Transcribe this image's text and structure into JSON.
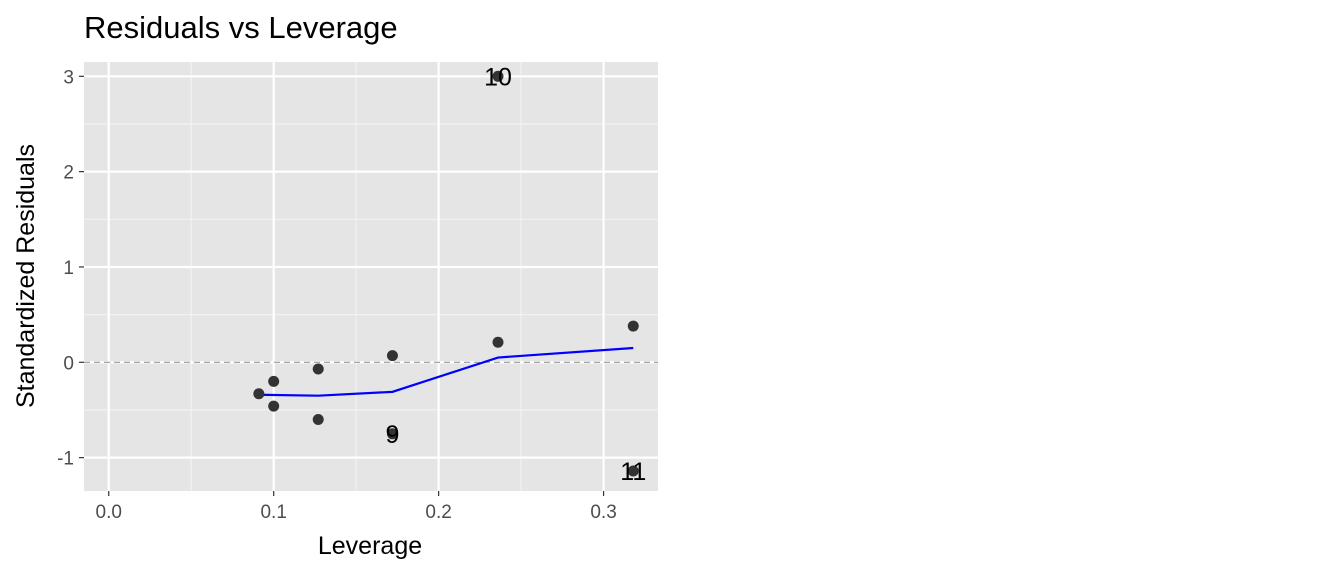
{
  "chart_data": {
    "type": "scatter",
    "title": "Residuals vs Leverage",
    "xlabel": "Leverage",
    "ylabel": "Standardized Residuals",
    "xlim": [
      -0.015,
      0.333
    ],
    "ylim": [
      -1.35,
      3.15
    ],
    "x_ticks": [
      0.0,
      0.1,
      0.2,
      0.3
    ],
    "x_tick_labels": [
      "0.0",
      "0.1",
      "0.2",
      "0.3"
    ],
    "y_ticks": [
      -1,
      0,
      1,
      2,
      3
    ],
    "y_tick_labels": [
      "-1",
      "0",
      "1",
      "2",
      "3"
    ],
    "grid": true,
    "reference_line": {
      "y": 0,
      "style": "dashed",
      "color": "#999999"
    },
    "point_color": "#333333",
    "smooth_color": "#0000ff",
    "points": [
      {
        "x": 0.091,
        "y": -0.33,
        "label": ""
      },
      {
        "x": 0.1,
        "y": -0.2,
        "label": ""
      },
      {
        "x": 0.1,
        "y": -0.46,
        "label": ""
      },
      {
        "x": 0.127,
        "y": -0.07,
        "label": ""
      },
      {
        "x": 0.127,
        "y": -0.6,
        "label": ""
      },
      {
        "x": 0.172,
        "y": 0.07,
        "label": ""
      },
      {
        "x": 0.172,
        "y": -0.75,
        "label": "9"
      },
      {
        "x": 0.236,
        "y": 3.0,
        "label": "10"
      },
      {
        "x": 0.236,
        "y": 0.21,
        "label": ""
      },
      {
        "x": 0.318,
        "y": 0.38,
        "label": ""
      },
      {
        "x": 0.318,
        "y": -1.14,
        "label": "11"
      }
    ],
    "smooth_line": [
      {
        "x": 0.091,
        "y": -0.34
      },
      {
        "x": 0.127,
        "y": -0.35
      },
      {
        "x": 0.172,
        "y": -0.31
      },
      {
        "x": 0.236,
        "y": 0.05
      },
      {
        "x": 0.318,
        "y": 0.15
      }
    ]
  }
}
